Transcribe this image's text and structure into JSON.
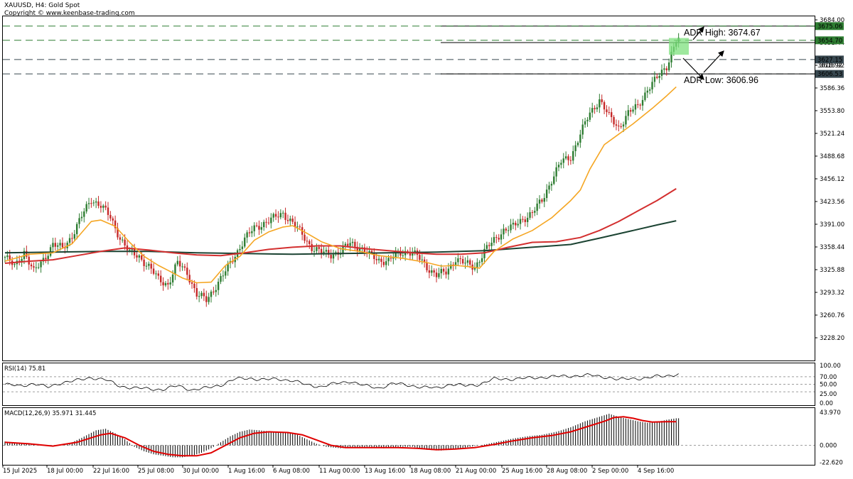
{
  "header": {
    "symbol_line": "XAUUSD, H4:  Gold Spot",
    "copyright": "Copyright © www.keenbase-trading.com"
  },
  "colors": {
    "bull": "#2e7d32",
    "bear": "#c62828",
    "ma_fast": "#f5a623",
    "ma_mid": "#d32f2f",
    "ma_slow": "#1b4332",
    "level_green": "#2e7d32",
    "level_dark": "#37474f"
  },
  "chart_data": [
    {
      "type": "candlestick",
      "title": "XAUUSD, H4: Gold Spot",
      "y_ticks": [
        3684.0,
        3651.44,
        3618.92,
        3586.36,
        3553.8,
        3521.24,
        3488.68,
        3456.12,
        3423.56,
        3391.0,
        3358.44,
        3325.88,
        3293.32,
        3260.76,
        3228.2
      ],
      "ylim": [
        3202,
        3710
      ],
      "x_ticks": [
        "15 Jul 2025",
        "18 Jul 00:00",
        "22 Jul 16:00",
        "25 Jul 08:00",
        "30 Jul 00:00",
        "1 Aug 16:00",
        "6 Aug 08:00",
        "11 Aug 00:00",
        "13 Aug 16:00",
        "18 Aug 08:00",
        "21 Aug 00:00",
        "25 Aug 16:00",
        "28 Aug 08:00",
        "2 Sep 00:00",
        "4 Sep 16:00"
      ],
      "close_path": [
        [
          0,
          3344
        ],
        [
          4,
          3330
        ],
        [
          8,
          3352
        ],
        [
          12,
          3322
        ],
        [
          16,
          3341
        ],
        [
          20,
          3362
        ],
        [
          24,
          3356
        ],
        [
          28,
          3375
        ],
        [
          32,
          3402
        ],
        [
          36,
          3427
        ],
        [
          40,
          3418
        ],
        [
          44,
          3400
        ],
        [
          48,
          3372
        ],
        [
          52,
          3350
        ],
        [
          56,
          3345
        ],
        [
          60,
          3330
        ],
        [
          64,
          3312
        ],
        [
          68,
          3305
        ],
        [
          72,
          3335
        ],
        [
          76,
          3322
        ],
        [
          80,
          3290
        ],
        [
          84,
          3282
        ],
        [
          88,
          3303
        ],
        [
          92,
          3323
        ],
        [
          96,
          3347
        ],
        [
          100,
          3370
        ],
        [
          104,
          3385
        ],
        [
          108,
          3393
        ],
        [
          112,
          3399
        ],
        [
          116,
          3407
        ],
        [
          120,
          3393
        ],
        [
          124,
          3376
        ],
        [
          128,
          3358
        ],
        [
          132,
          3350
        ],
        [
          136,
          3348
        ],
        [
          140,
          3352
        ],
        [
          144,
          3364
        ],
        [
          148,
          3358
        ],
        [
          152,
          3347
        ],
        [
          156,
          3340
        ],
        [
          160,
          3338
        ],
        [
          164,
          3349
        ],
        [
          168,
          3353
        ],
        [
          172,
          3345
        ],
        [
          176,
          3330
        ],
        [
          180,
          3318
        ],
        [
          184,
          3322
        ],
        [
          188,
          3342
        ],
        [
          192,
          3334
        ],
        [
          196,
          3330
        ],
        [
          200,
          3352
        ],
        [
          204,
          3368
        ],
        [
          208,
          3383
        ],
        [
          212,
          3387
        ],
        [
          216,
          3399
        ],
        [
          220,
          3407
        ],
        [
          224,
          3425
        ],
        [
          228,
          3455
        ],
        [
          232,
          3480
        ],
        [
          236,
          3488
        ],
        [
          240,
          3520
        ],
        [
          244,
          3550
        ],
        [
          248,
          3570
        ],
        [
          252,
          3545
        ],
        [
          256,
          3530
        ],
        [
          260,
          3550
        ],
        [
          264,
          3560
        ],
        [
          268,
          3585
        ],
        [
          272,
          3600
        ],
        [
          276,
          3618
        ],
        [
          280,
          3655
        ]
      ],
      "ma_fast_path": [
        [
          0,
          3338
        ],
        [
          10,
          3348
        ],
        [
          20,
          3350
        ],
        [
          28,
          3363
        ],
        [
          36,
          3395
        ],
        [
          40,
          3397
        ],
        [
          46,
          3388
        ],
        [
          52,
          3365
        ],
        [
          58,
          3345
        ],
        [
          64,
          3332
        ],
        [
          68,
          3325
        ],
        [
          74,
          3314
        ],
        [
          80,
          3307
        ],
        [
          86,
          3308
        ],
        [
          92,
          3332
        ],
        [
          98,
          3345
        ],
        [
          104,
          3368
        ],
        [
          110,
          3380
        ],
        [
          116,
          3387
        ],
        [
          120,
          3389
        ],
        [
          126,
          3378
        ],
        [
          132,
          3366
        ],
        [
          140,
          3356
        ],
        [
          148,
          3352
        ],
        [
          156,
          3346
        ],
        [
          166,
          3342
        ],
        [
          176,
          3336
        ],
        [
          182,
          3331
        ],
        [
          188,
          3332
        ],
        [
          194,
          3330
        ],
        [
          198,
          3328
        ],
        [
          204,
          3352
        ],
        [
          212,
          3370
        ],
        [
          220,
          3382
        ],
        [
          228,
          3400
        ],
        [
          236,
          3425
        ],
        [
          240,
          3440
        ],
        [
          244,
          3470
        ],
        [
          250,
          3505
        ],
        [
          256,
          3520
        ],
        [
          262,
          3535
        ],
        [
          270,
          3557
        ],
        [
          276,
          3575
        ],
        [
          280,
          3588
        ]
      ],
      "ma_mid_path": [
        [
          0,
          3335
        ],
        [
          10,
          3338
        ],
        [
          20,
          3340
        ],
        [
          30,
          3346
        ],
        [
          40,
          3352
        ],
        [
          50,
          3357
        ],
        [
          60,
          3354
        ],
        [
          70,
          3350
        ],
        [
          80,
          3347
        ],
        [
          90,
          3346
        ],
        [
          100,
          3350
        ],
        [
          110,
          3355
        ],
        [
          120,
          3358
        ],
        [
          130,
          3360
        ],
        [
          140,
          3360
        ],
        [
          150,
          3356
        ],
        [
          160,
          3353
        ],
        [
          170,
          3350
        ],
        [
          180,
          3348
        ],
        [
          190,
          3348
        ],
        [
          200,
          3350
        ],
        [
          210,
          3358
        ],
        [
          220,
          3365
        ],
        [
          230,
          3366
        ],
        [
          240,
          3372
        ],
        [
          248,
          3382
        ],
        [
          256,
          3395
        ],
        [
          264,
          3410
        ],
        [
          272,
          3425
        ],
        [
          280,
          3442
        ]
      ],
      "ma_slow_path": [
        [
          0,
          3350
        ],
        [
          20,
          3351
        ],
        [
          40,
          3352
        ],
        [
          60,
          3352
        ],
        [
          80,
          3350
        ],
        [
          100,
          3349
        ],
        [
          120,
          3348
        ],
        [
          140,
          3349
        ],
        [
          160,
          3350
        ],
        [
          180,
          3351
        ],
        [
          200,
          3353
        ],
        [
          220,
          3358
        ],
        [
          236,
          3362
        ],
        [
          248,
          3371
        ],
        [
          262,
          3382
        ],
        [
          272,
          3390
        ],
        [
          280,
          3396
        ]
      ],
      "price_labels": [
        {
          "text": "3675.06",
          "value": 3675.06,
          "style": "green"
        },
        {
          "text": "3654.70",
          "value": 3654.7,
          "style": "green"
        },
        {
          "text": "3627.15",
          "value": 3627.15,
          "style": "dark"
        },
        {
          "text": "3618.92",
          "value": 3618.92,
          "style": "plain"
        },
        {
          "text": "3606.53",
          "value": 3606.53,
          "style": "dark"
        }
      ],
      "levels": [
        {
          "value": 3675.06,
          "kind": "solid-dark"
        },
        {
          "value": 3675.06,
          "kind": "dashed-green"
        },
        {
          "value": 3654.7,
          "kind": "dashed-green"
        },
        {
          "value": 3651.44,
          "kind": "solid-dark"
        },
        {
          "value": 3627.15,
          "kind": "dashed-dark"
        },
        {
          "value": 3606.53,
          "kind": "dashed-dark"
        },
        {
          "value": 3606.53,
          "kind": "solid-dark"
        }
      ],
      "annotations": [
        {
          "text": "ADR High: 3674.67"
        },
        {
          "text": "ADR Low: 3606.96"
        }
      ]
    },
    {
      "type": "line",
      "title": "RSI(14) 75.81",
      "name": "RSI(14)",
      "ticks": [
        "100.00",
        "70.00",
        "50.00",
        "25.00",
        "0.00"
      ],
      "levels": [
        70,
        50,
        30
      ],
      "ylim": [
        0,
        100
      ],
      "points": [
        [
          0,
          50
        ],
        [
          6,
          45
        ],
        [
          12,
          52
        ],
        [
          18,
          42
        ],
        [
          24,
          55
        ],
        [
          30,
          60
        ],
        [
          36,
          68
        ],
        [
          42,
          62
        ],
        [
          48,
          45
        ],
        [
          54,
          40
        ],
        [
          60,
          38
        ],
        [
          66,
          36
        ],
        [
          72,
          46
        ],
        [
          78,
          35
        ],
        [
          84,
          40
        ],
        [
          90,
          48
        ],
        [
          96,
          64
        ],
        [
          102,
          66
        ],
        [
          108,
          62
        ],
        [
          114,
          64
        ],
        [
          120,
          60
        ],
        [
          126,
          48
        ],
        [
          132,
          44
        ],
        [
          138,
          52
        ],
        [
          144,
          58
        ],
        [
          150,
          46
        ],
        [
          156,
          40
        ],
        [
          162,
          52
        ],
        [
          168,
          48
        ],
        [
          174,
          42
        ],
        [
          180,
          40
        ],
        [
          186,
          50
        ],
        [
          192,
          46
        ],
        [
          198,
          50
        ],
        [
          204,
          64
        ],
        [
          212,
          64
        ],
        [
          220,
          67
        ],
        [
          228,
          70
        ],
        [
          236,
          72
        ],
        [
          244,
          74
        ],
        [
          252,
          68
        ],
        [
          256,
          62
        ],
        [
          260,
          65
        ],
        [
          264,
          66
        ],
        [
          268,
          66
        ],
        [
          272,
          71
        ],
        [
          276,
          73
        ],
        [
          280,
          75.81
        ]
      ]
    },
    {
      "type": "bar",
      "title": "MACD(12,26,9) 35.971 31.445",
      "name": "MACD(12,26,9)",
      "ticks": [
        "43.970",
        "0.000",
        "-22.620"
      ],
      "ylim": [
        -22.62,
        43.97
      ],
      "zero_line": 0,
      "macd_path": [
        [
          0,
          5
        ],
        [
          8,
          2
        ],
        [
          14,
          0
        ],
        [
          20,
          -1
        ],
        [
          26,
          1
        ],
        [
          32,
          10
        ],
        [
          38,
          20
        ],
        [
          42,
          22
        ],
        [
          46,
          16
        ],
        [
          50,
          8
        ],
        [
          54,
          -2
        ],
        [
          58,
          -8
        ],
        [
          62,
          -12
        ],
        [
          66,
          -14
        ],
        [
          70,
          -16
        ],
        [
          74,
          -16
        ],
        [
          78,
          -14
        ],
        [
          82,
          -10
        ],
        [
          86,
          -4
        ],
        [
          90,
          4
        ],
        [
          94,
          12
        ],
        [
          98,
          18
        ],
        [
          102,
          21
        ],
        [
          106,
          20
        ],
        [
          112,
          18
        ],
        [
          118,
          17
        ],
        [
          122,
          14
        ],
        [
          126,
          8
        ],
        [
          130,
          2
        ],
        [
          134,
          -2
        ],
        [
          140,
          -4
        ],
        [
          146,
          -3
        ],
        [
          152,
          -2
        ],
        [
          158,
          -4
        ],
        [
          164,
          -2
        ],
        [
          170,
          -2
        ],
        [
          176,
          -6
        ],
        [
          182,
          -7
        ],
        [
          188,
          -5
        ],
        [
          194,
          -2
        ],
        [
          200,
          1
        ],
        [
          206,
          5
        ],
        [
          212,
          9
        ],
        [
          218,
          12
        ],
        [
          224,
          14
        ],
        [
          230,
          18
        ],
        [
          236,
          24
        ],
        [
          242,
          32
        ],
        [
          248,
          38
        ],
        [
          252,
          42
        ],
        [
          256,
          38
        ],
        [
          260,
          35
        ],
        [
          264,
          32
        ],
        [
          268,
          30
        ],
        [
          272,
          31
        ],
        [
          276,
          34
        ],
        [
          280,
          36
        ]
      ],
      "signal_path": [
        [
          0,
          4
        ],
        [
          10,
          2
        ],
        [
          20,
          -1
        ],
        [
          30,
          4
        ],
        [
          40,
          14
        ],
        [
          44,
          16
        ],
        [
          50,
          10
        ],
        [
          56,
          0
        ],
        [
          62,
          -8
        ],
        [
          68,
          -12
        ],
        [
          74,
          -14
        ],
        [
          80,
          -14
        ],
        [
          86,
          -10
        ],
        [
          92,
          0
        ],
        [
          98,
          10
        ],
        [
          104,
          16
        ],
        [
          110,
          18
        ],
        [
          118,
          17
        ],
        [
          124,
          14
        ],
        [
          130,
          7
        ],
        [
          136,
          0
        ],
        [
          142,
          -3
        ],
        [
          148,
          -3
        ],
        [
          156,
          -3
        ],
        [
          164,
          -3
        ],
        [
          172,
          -4
        ],
        [
          180,
          -6
        ],
        [
          188,
          -5
        ],
        [
          196,
          -3
        ],
        [
          204,
          1
        ],
        [
          212,
          6
        ],
        [
          220,
          10
        ],
        [
          228,
          13
        ],
        [
          236,
          18
        ],
        [
          244,
          26
        ],
        [
          250,
          32
        ],
        [
          254,
          37
        ],
        [
          258,
          38
        ],
        [
          262,
          36
        ],
        [
          266,
          33
        ],
        [
          270,
          31
        ],
        [
          276,
          31.4
        ],
        [
          280,
          31.445
        ]
      ]
    }
  ]
}
